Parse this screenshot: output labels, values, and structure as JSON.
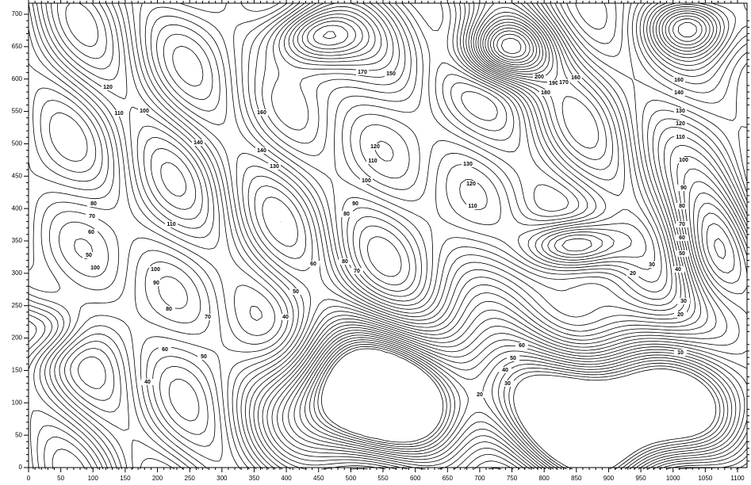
{
  "chart_data": {
    "type": "contour",
    "xlim": [
      0,
      1100
    ],
    "ylim": [
      0,
      700
    ],
    "xticks": [
      0,
      50,
      100,
      150,
      200,
      250,
      300,
      350,
      400,
      450,
      500,
      550,
      600,
      650,
      700,
      750,
      800,
      850,
      900,
      950,
      1000,
      1050,
      1100
    ],
    "yticks": [
      0,
      50,
      100,
      150,
      200,
      250,
      300,
      350,
      400,
      450,
      500,
      550,
      600,
      650,
      700
    ],
    "contour_labels": [
      120,
      110,
      100,
      140,
      160,
      140,
      130,
      170,
      150,
      120,
      110,
      100,
      90,
      80,
      200,
      190,
      180,
      170,
      160,
      160,
      140,
      130,
      120,
      110,
      100,
      90,
      80,
      70,
      60,
      50,
      40,
      30,
      20,
      30,
      20,
      10,
      80,
      70,
      60,
      50,
      100,
      110,
      100,
      90,
      80,
      70,
      60,
      50,
      40,
      60,
      50,
      40,
      80,
      70,
      130,
      120,
      110,
      60,
      50,
      40,
      30,
      20
    ]
  }
}
